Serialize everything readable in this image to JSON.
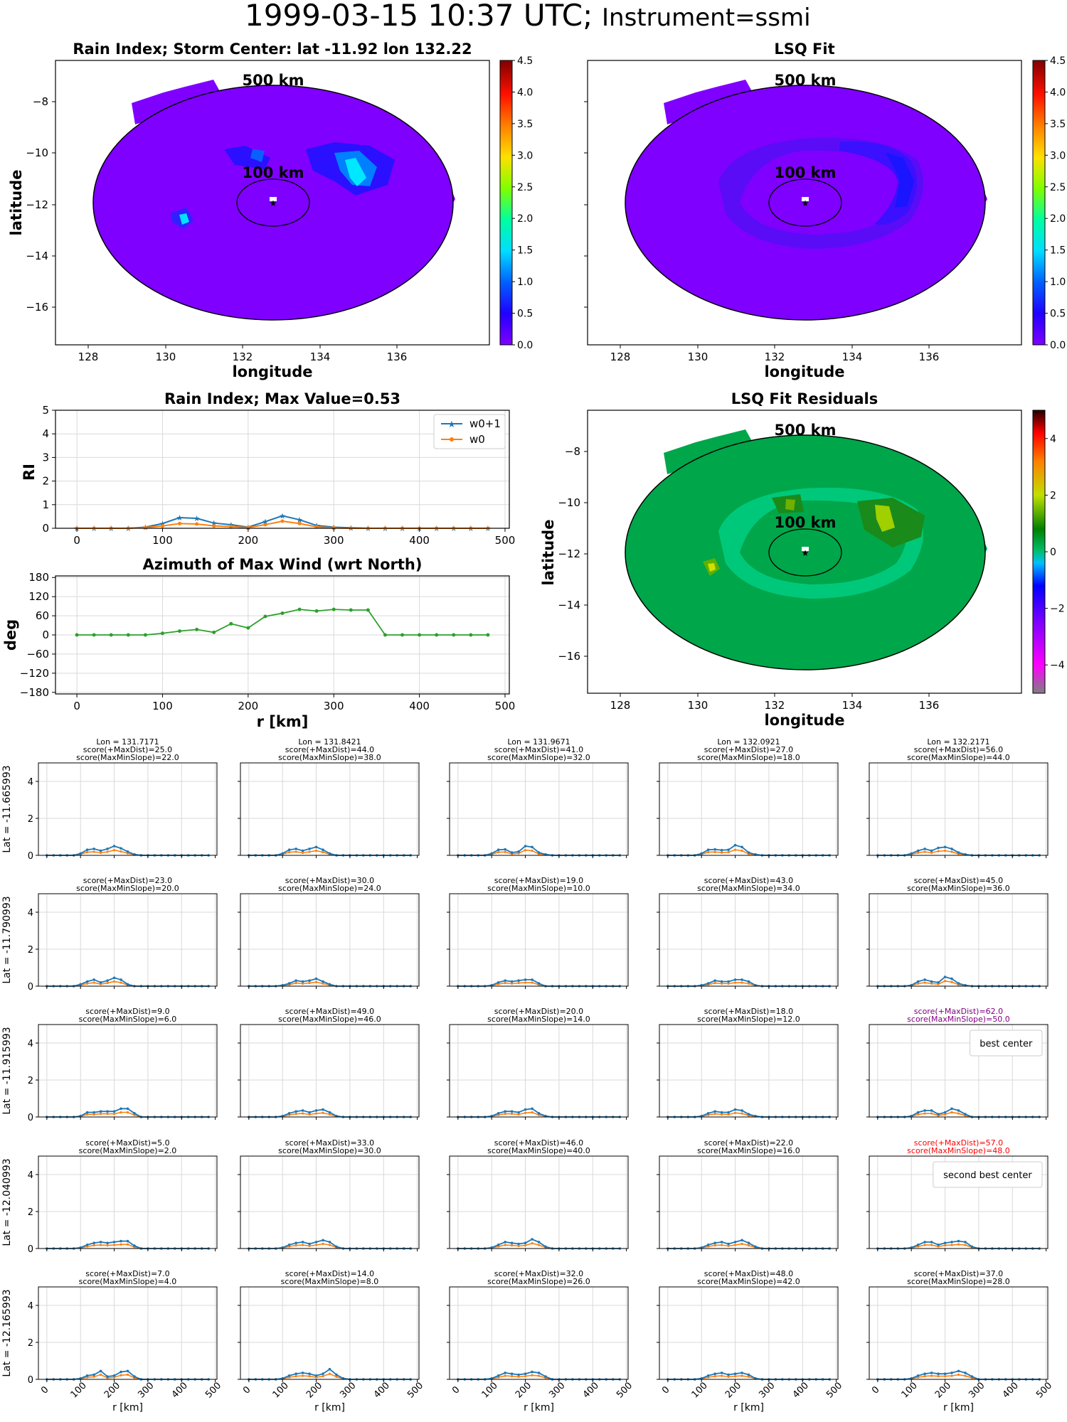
{
  "header": {
    "timestamp": "1999-03-15 10:37 UTC;",
    "instrument": "Instrument=ssmi"
  },
  "map_panels": [
    {
      "title": "Rain Index; Storm Center: lat -11.92 lon 132.22",
      "xlabel": "longitude",
      "ylabel": "latitude",
      "ring_outer": "500 km",
      "ring_inner": "100 km",
      "xticks": [
        "128",
        "130",
        "132",
        "134",
        "136"
      ],
      "yticks": [
        "−8",
        "−10",
        "−12",
        "−14",
        "−16"
      ],
      "colorbar_ticks": [
        "0.0",
        "0.5",
        "1.0",
        "1.5",
        "2.0",
        "2.5",
        "3.0",
        "3.5",
        "4.0",
        "4.5"
      ]
    },
    {
      "title": "LSQ Fit",
      "xlabel": "longitude",
      "ylabel": "",
      "ring_outer": "500 km",
      "ring_inner": "100 km",
      "xticks": [
        "128",
        "130",
        "132",
        "134",
        "136"
      ],
      "yticks": [
        "−8",
        "−10",
        "−12",
        "−14",
        "−16"
      ],
      "colorbar_ticks": [
        "0.0",
        "0.5",
        "1.0",
        "1.5",
        "2.0",
        "2.5",
        "3.0",
        "3.5",
        "4.0",
        "4.5"
      ]
    },
    {
      "title": "LSQ Fit Residuals",
      "xlabel": "longitude",
      "ylabel": "latitude",
      "ring_outer": "500 km",
      "ring_inner": "100 km",
      "xticks": [
        "128",
        "130",
        "132",
        "134",
        "136"
      ],
      "yticks": [
        "−8",
        "−10",
        "−12",
        "−14",
        "−16"
      ],
      "colorbar_ticks": [
        "−4",
        "−2",
        "0",
        "2",
        "4"
      ]
    }
  ],
  "chart_data": [
    {
      "type": "line",
      "title": "Rain Index; Max Value=0.53",
      "ylabel": "RI",
      "xlabel": "",
      "xlim": [
        -25,
        505
      ],
      "ylim": [
        0,
        5
      ],
      "xticks": [
        "0",
        "100",
        "200",
        "300",
        "400",
        "500"
      ],
      "yticks": [
        "0",
        "1",
        "2",
        "3",
        "4",
        "5"
      ],
      "x": [
        0,
        20,
        40,
        60,
        80,
        100,
        120,
        140,
        160,
        180,
        200,
        220,
        240,
        260,
        280,
        300,
        320,
        340,
        360,
        380,
        400,
        420,
        440,
        460,
        480
      ],
      "series": [
        {
          "name": "w0+1",
          "color": "#1f77b4",
          "values": [
            0,
            0,
            0,
            0,
            0.05,
            0.2,
            0.45,
            0.42,
            0.22,
            0.15,
            0.05,
            0.28,
            0.53,
            0.36,
            0.12,
            0.05,
            0.02,
            0,
            0,
            0,
            0,
            0,
            0,
            0,
            0
          ]
        },
        {
          "name": "w0",
          "color": "#ff7f0e",
          "values": [
            0,
            0,
            0,
            0,
            0.03,
            0.1,
            0.2,
            0.18,
            0.1,
            0.07,
            0.03,
            0.15,
            0.3,
            0.2,
            0.06,
            0.02,
            0,
            0,
            0,
            0,
            0,
            0,
            0,
            0,
            0
          ]
        }
      ]
    },
    {
      "type": "line",
      "title": "Azimuth of Max Wind (wrt North)",
      "ylabel": "deg",
      "xlabel": "r [km]",
      "xlim": [
        -25,
        505
      ],
      "ylim": [
        -185,
        185
      ],
      "xticks": [
        "0",
        "100",
        "200",
        "300",
        "400",
        "500"
      ],
      "yticks": [
        "180",
        "120",
        "60",
        "0",
        "−60",
        "−120",
        "−180"
      ],
      "x": [
        0,
        20,
        40,
        60,
        80,
        100,
        120,
        140,
        160,
        180,
        200,
        220,
        240,
        260,
        280,
        300,
        320,
        340,
        360,
        380,
        400,
        420,
        440,
        460,
        480
      ],
      "series": [
        {
          "name": "",
          "color": "#2ca02c",
          "values": [
            0,
            0,
            0,
            0,
            0,
            5,
            12,
            17,
            8,
            35,
            22,
            58,
            68,
            80,
            75,
            80,
            78,
            78,
            0,
            0,
            0,
            0,
            0,
            0,
            0
          ]
        }
      ]
    },
    {
      "type": "line",
      "grid": "5x5 small multiples of w0+1 (blue) and w0 (orange) vs r [km]",
      "xlabel": "r [km]",
      "xlim": [
        -25,
        505
      ],
      "ylim": [
        0,
        5
      ],
      "xticks": [
        "0",
        "100",
        "200",
        "300",
        "400",
        "500"
      ],
      "yticks": [
        "0",
        "2",
        "4"
      ],
      "row_labels": [
        "Lat = -11.665993",
        "Lat = -11.790993",
        "Lat = -11.915993",
        "Lat = -12.040993",
        "Lat = -12.165993"
      ],
      "lon_labels": [
        "Lon = 131.7171",
        "Lon = 131.8421",
        "Lon = 131.9671",
        "Lon = 132.0921",
        "Lon = 132.2171"
      ],
      "scores": [
        [
          [
            "score(+MaxDist)=25.0",
            "score(MaxMinSlope)=22.0"
          ],
          [
            "score(+MaxDist)=44.0",
            "score(MaxMinSlope)=38.0"
          ],
          [
            "score(+MaxDist)=41.0",
            "score(MaxMinSlope)=32.0"
          ],
          [
            "score(+MaxDist)=27.0",
            "score(MaxMinSlope)=18.0"
          ],
          [
            "score(+MaxDist)=56.0",
            "score(MaxMinSlope)=44.0"
          ]
        ],
        [
          [
            "score(+MaxDist)=23.0",
            "score(MaxMinSlope)=20.0"
          ],
          [
            "score(+MaxDist)=30.0",
            "score(MaxMinSlope)=24.0"
          ],
          [
            "score(+MaxDist)=19.0",
            "score(MaxMinSlope)=10.0"
          ],
          [
            "score(+MaxDist)=43.0",
            "score(MaxMinSlope)=34.0"
          ],
          [
            "score(+MaxDist)=45.0",
            "score(MaxMinSlope)=36.0"
          ]
        ],
        [
          [
            "score(+MaxDist)=9.0",
            "score(MaxMinSlope)=6.0"
          ],
          [
            "score(+MaxDist)=49.0",
            "score(MaxMinSlope)=46.0"
          ],
          [
            "score(+MaxDist)=20.0",
            "score(MaxMinSlope)=14.0"
          ],
          [
            "score(+MaxDist)=18.0",
            "score(MaxMinSlope)=12.0"
          ],
          [
            "score(+MaxDist)=62.0",
            "score(MaxMinSlope)=50.0"
          ]
        ],
        [
          [
            "score(+MaxDist)=5.0",
            "score(MaxMinSlope)=2.0"
          ],
          [
            "score(+MaxDist)=33.0",
            "score(MaxMinSlope)=30.0"
          ],
          [
            "score(+MaxDist)=46.0",
            "score(MaxMinSlope)=40.0"
          ],
          [
            "score(+MaxDist)=22.0",
            "score(MaxMinSlope)=16.0"
          ],
          [
            "score(+MaxDist)=57.0",
            "score(MaxMinSlope)=48.0"
          ]
        ],
        [
          [
            "score(+MaxDist)=7.0",
            "score(MaxMinSlope)=4.0"
          ],
          [
            "score(+MaxDist)=14.0",
            "score(MaxMinSlope)=8.0"
          ],
          [
            "score(+MaxDist)=32.0",
            "score(MaxMinSlope)=26.0"
          ],
          [
            "score(+MaxDist)=48.0",
            "score(MaxMinSlope)=42.0"
          ],
          [
            "score(+MaxDist)=37.0",
            "score(MaxMinSlope)=28.0"
          ]
        ]
      ],
      "highlights": [
        {
          "row": 2,
          "col": 4,
          "label": "best center",
          "color": "#800080"
        },
        {
          "row": 3,
          "col": 4,
          "label": "second best center",
          "color": "#ff0000"
        }
      ],
      "series_colors": {
        "w0+1": "#1f77b4",
        "w0": "#ff7f0e"
      },
      "blue_profiles": [
        [
          [
            0,
            0,
            0,
            0,
            0,
            0.1,
            0.3,
            0.35,
            0.25,
            0.35,
            0.5,
            0.38,
            0.2,
            0.05,
            0,
            0,
            0,
            0,
            0,
            0,
            0,
            0,
            0,
            0,
            0
          ],
          [
            0,
            0,
            0,
            0,
            0,
            0.1,
            0.3,
            0.35,
            0.25,
            0.35,
            0.45,
            0.3,
            0.1,
            0,
            0,
            0,
            0,
            0,
            0,
            0,
            0,
            0,
            0,
            0,
            0
          ],
          [
            0,
            0,
            0,
            0,
            0,
            0.1,
            0.3,
            0.32,
            0.15,
            0.2,
            0.5,
            0.45,
            0.15,
            0.05,
            0,
            0,
            0,
            0,
            0,
            0,
            0,
            0,
            0,
            0,
            0
          ],
          [
            0,
            0,
            0,
            0,
            0,
            0.1,
            0.3,
            0.32,
            0.28,
            0.3,
            0.55,
            0.45,
            0.15,
            0.05,
            0,
            0,
            0,
            0,
            0,
            0,
            0,
            0,
            0,
            0,
            0
          ],
          [
            0,
            0,
            0,
            0,
            0,
            0.1,
            0.25,
            0.35,
            0.25,
            0.4,
            0.45,
            0.35,
            0.15,
            0.05,
            0,
            0,
            0,
            0,
            0,
            0,
            0,
            0,
            0,
            0,
            0
          ]
        ],
        [
          [
            0,
            0,
            0,
            0,
            0,
            0.1,
            0.25,
            0.35,
            0.2,
            0.3,
            0.45,
            0.35,
            0.1,
            0,
            0,
            0,
            0,
            0,
            0,
            0,
            0,
            0,
            0,
            0,
            0
          ],
          [
            0,
            0,
            0,
            0,
            0,
            0.05,
            0.15,
            0.3,
            0.25,
            0.3,
            0.4,
            0.25,
            0.1,
            0,
            0,
            0,
            0,
            0,
            0,
            0,
            0,
            0,
            0,
            0,
            0
          ],
          [
            0,
            0,
            0,
            0,
            0,
            0.05,
            0.2,
            0.3,
            0.25,
            0.3,
            0.35,
            0.35,
            0.15,
            0,
            0,
            0,
            0,
            0,
            0,
            0,
            0,
            0,
            0,
            0,
            0
          ],
          [
            0,
            0,
            0,
            0,
            0,
            0.05,
            0.15,
            0.3,
            0.25,
            0.25,
            0.35,
            0.35,
            0.25,
            0.05,
            0,
            0,
            0,
            0,
            0,
            0,
            0,
            0,
            0,
            0,
            0
          ],
          [
            0,
            0,
            0,
            0,
            0,
            0.05,
            0.25,
            0.35,
            0.25,
            0.2,
            0.5,
            0.4,
            0.15,
            0.05,
            0,
            0,
            0,
            0,
            0,
            0,
            0,
            0,
            0,
            0,
            0
          ]
        ],
        [
          [
            0,
            0,
            0,
            0,
            0,
            0.05,
            0.25,
            0.25,
            0.3,
            0.3,
            0.3,
            0.45,
            0.45,
            0.2,
            0,
            0,
            0,
            0,
            0,
            0,
            0,
            0,
            0,
            0,
            0
          ],
          [
            0,
            0,
            0,
            0,
            0,
            0.05,
            0.2,
            0.3,
            0.35,
            0.25,
            0.35,
            0.4,
            0.25,
            0.05,
            0,
            0,
            0,
            0,
            0,
            0,
            0,
            0,
            0,
            0,
            0
          ],
          [
            0,
            0,
            0,
            0,
            0,
            0.05,
            0.2,
            0.3,
            0.3,
            0.25,
            0.4,
            0.45,
            0.2,
            0.05,
            0,
            0,
            0,
            0,
            0,
            0,
            0,
            0,
            0,
            0,
            0
          ],
          [
            0,
            0,
            0,
            0,
            0,
            0.05,
            0.2,
            0.3,
            0.25,
            0.25,
            0.4,
            0.35,
            0.15,
            0.05,
            0,
            0,
            0,
            0,
            0,
            0,
            0,
            0,
            0,
            0,
            0
          ],
          [
            0,
            0,
            0,
            0,
            0,
            0.05,
            0.25,
            0.35,
            0.35,
            0.15,
            0.25,
            0.45,
            0.35,
            0.15,
            0,
            0,
            0,
            0,
            0,
            0,
            0,
            0,
            0,
            0,
            0
          ]
        ],
        [
          [
            0,
            0,
            0,
            0,
            0,
            0.05,
            0.2,
            0.3,
            0.35,
            0.3,
            0.35,
            0.4,
            0.4,
            0.15,
            0,
            0,
            0,
            0,
            0,
            0,
            0,
            0,
            0,
            0,
            0
          ],
          [
            0,
            0,
            0,
            0,
            0,
            0.05,
            0.2,
            0.3,
            0.35,
            0.25,
            0.35,
            0.45,
            0.35,
            0.1,
            0,
            0,
            0,
            0,
            0,
            0,
            0,
            0,
            0,
            0,
            0
          ],
          [
            0,
            0,
            0,
            0,
            0,
            0.05,
            0.2,
            0.35,
            0.3,
            0.25,
            0.3,
            0.5,
            0.35,
            0.1,
            0,
            0,
            0,
            0,
            0,
            0,
            0,
            0,
            0,
            0,
            0
          ],
          [
            0,
            0,
            0,
            0,
            0,
            0.05,
            0.2,
            0.3,
            0.35,
            0.25,
            0.35,
            0.45,
            0.3,
            0.1,
            0,
            0,
            0,
            0,
            0,
            0,
            0,
            0,
            0,
            0,
            0
          ],
          [
            0,
            0,
            0,
            0,
            0,
            0.05,
            0.2,
            0.35,
            0.35,
            0.2,
            0.3,
            0.35,
            0.4,
            0.35,
            0.1,
            0,
            0,
            0,
            0,
            0,
            0,
            0,
            0,
            0,
            0
          ]
        ],
        [
          [
            0,
            0,
            0,
            0,
            0,
            0.05,
            0.2,
            0.25,
            0.45,
            0.15,
            0.2,
            0.4,
            0.45,
            0.15,
            0,
            0,
            0,
            0,
            0,
            0,
            0,
            0,
            0,
            0,
            0
          ],
          [
            0,
            0,
            0,
            0,
            0,
            0.05,
            0.2,
            0.3,
            0.35,
            0.3,
            0.2,
            0.3,
            0.55,
            0.25,
            0.05,
            0,
            0,
            0,
            0,
            0,
            0,
            0,
            0,
            0,
            0
          ],
          [
            0,
            0,
            0,
            0,
            0,
            0.05,
            0.2,
            0.35,
            0.3,
            0.25,
            0.3,
            0.4,
            0.35,
            0.15,
            0,
            0,
            0,
            0,
            0,
            0,
            0,
            0,
            0,
            0,
            0
          ],
          [
            0,
            0,
            0,
            0,
            0,
            0.05,
            0.2,
            0.3,
            0.35,
            0.25,
            0.3,
            0.35,
            0.25,
            0.05,
            0,
            0,
            0,
            0,
            0,
            0,
            0,
            0,
            0,
            0,
            0
          ],
          [
            0,
            0,
            0,
            0,
            0,
            0.05,
            0.2,
            0.3,
            0.35,
            0.3,
            0.3,
            0.35,
            0.45,
            0.35,
            0.15,
            0,
            0,
            0,
            0,
            0,
            0,
            0,
            0,
            0,
            0
          ]
        ]
      ]
    }
  ]
}
